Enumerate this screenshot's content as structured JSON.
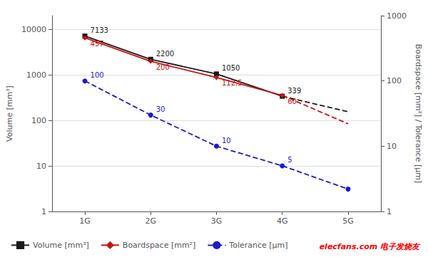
{
  "chart_data": {
    "type": "line",
    "categories": [
      "1G",
      "2G",
      "3G",
      "4G",
      "5G"
    ],
    "ylabel": "Volume [mm³]",
    "y2label": "Boardspace [mm²] / Tolerance [µm]",
    "log": true,
    "ylim": [
      1,
      20000
    ],
    "yticks": [
      1,
      10,
      100,
      1000,
      10000
    ],
    "y2lim": [
      1,
      1000
    ],
    "y2ticks": [
      1,
      10,
      100,
      1000
    ],
    "grid": true,
    "legend": "lower left",
    "data_labels": true,
    "series": [
      {
        "name": "Volume [mm³]",
        "color": "#1a1a1a",
        "values": [
          7133,
          2200,
          1050,
          339,
          null
        ],
        "value_labels": [
          "7133",
          "2200",
          "1050",
          "339",
          null
        ],
        "marker": "square",
        "line_style": "solid"
      },
      {
        "color": "#1a1a1a",
        "values": [
          null,
          null,
          null,
          339,
          155
        ],
        "marker": "none",
        "line_style": "dashed"
      },
      {
        "name": "Boardspace [mm²]",
        "color": "#cc1111",
        "values": [
          457,
          200,
          112.5,
          60,
          null
        ],
        "value_labels": [
          "457",
          "200",
          "112,5",
          "60",
          null
        ],
        "axis": "y2",
        "marker": "diamond",
        "line_style": "solid"
      },
      {
        "color": "#cc1111",
        "values": [
          null,
          null,
          null,
          60,
          22
        ],
        "axis": "y2",
        "marker": "none",
        "line_style": "dashed"
      },
      {
        "name": "Tolerance [µm]",
        "color": "#1a1acc",
        "values": [
          100,
          30,
          10,
          5,
          2.2
        ],
        "value_labels": [
          "100",
          "30",
          "10",
          "5",
          null
        ],
        "axis": "y2",
        "marker": "circle",
        "line_style": "dashed"
      }
    ],
    "annotations": [
      {
        "text": "elecfans.com 电子发烧友",
        "color": "red"
      }
    ]
  }
}
